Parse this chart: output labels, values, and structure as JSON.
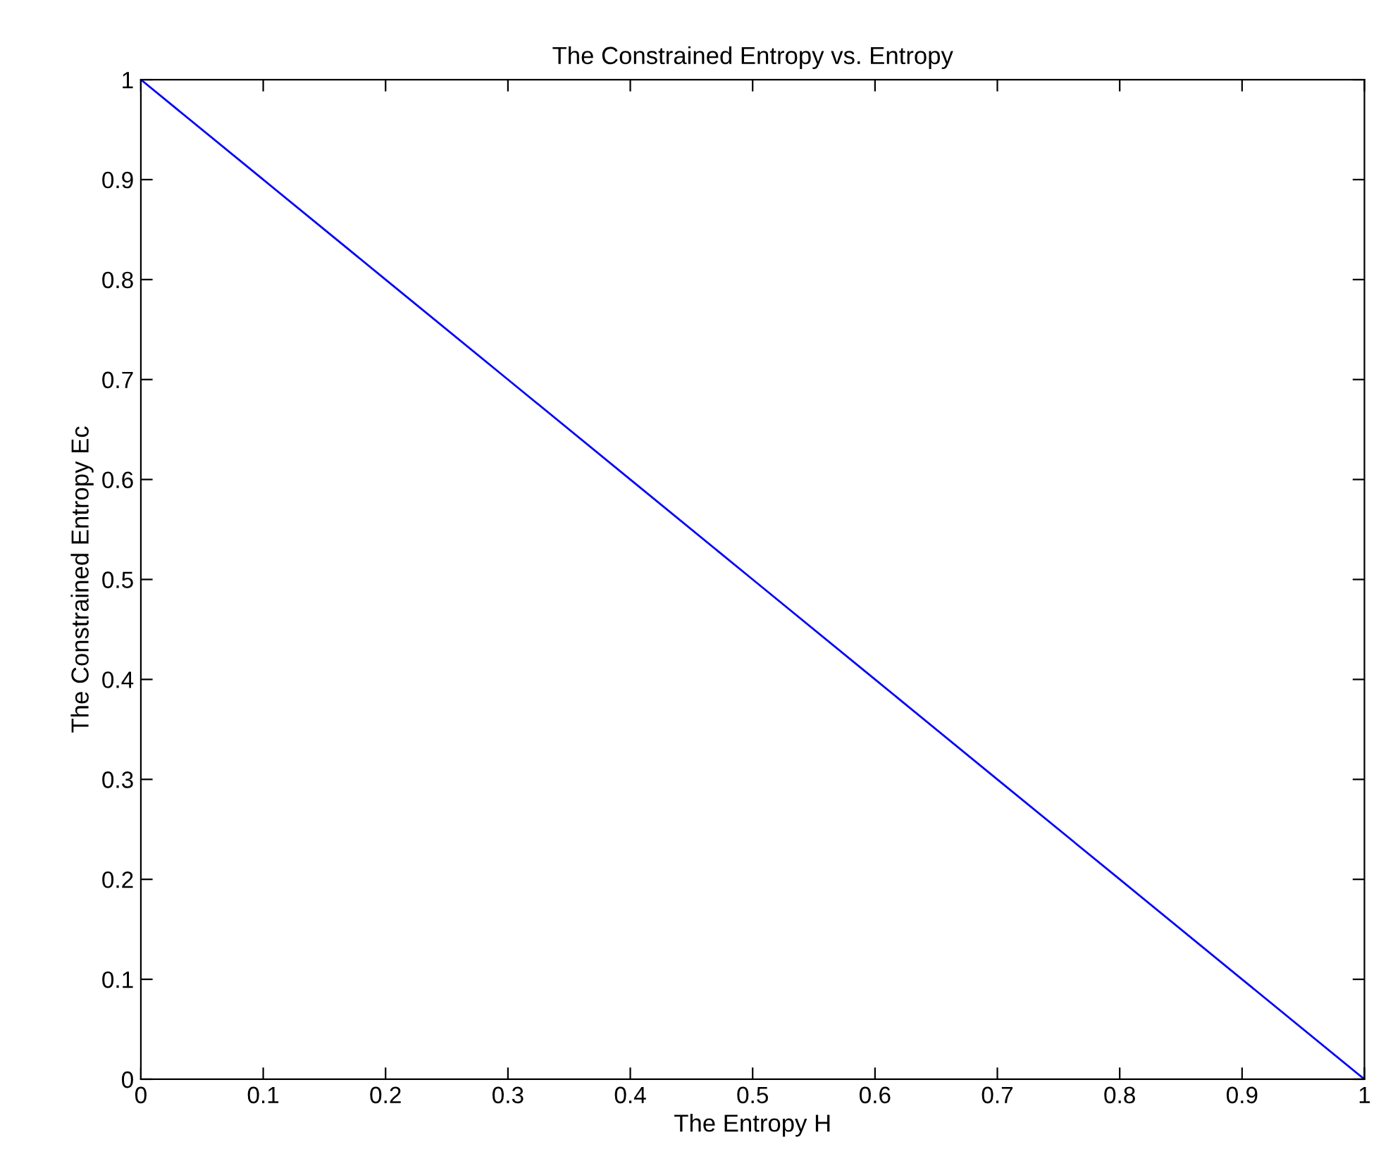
{
  "chart_data": {
    "type": "line",
    "title": "The Constrained Entropy vs. Entropy",
    "xlabel": "The Entropy H",
    "ylabel": "The Constrained Entropy Ec",
    "series": [
      {
        "color": "#0000ff",
        "x": [
          0,
          0.1,
          0.2,
          0.3,
          0.4,
          0.5,
          0.6,
          0.7,
          0.8,
          0.9,
          1
        ],
        "values": [
          1,
          0.9,
          0.8,
          0.7,
          0.6,
          0.5,
          0.4,
          0.3,
          0.2,
          0.1,
          0
        ]
      }
    ],
    "xlim": [
      0,
      1
    ],
    "ylim": [
      0,
      1
    ],
    "xticks": [
      0,
      0.1,
      0.2,
      0.3,
      0.4,
      0.5,
      0.6,
      0.7,
      0.8,
      0.9,
      1
    ],
    "yticks": [
      0,
      0.1,
      0.2,
      0.3,
      0.4,
      0.5,
      0.6,
      0.7,
      0.8,
      0.9,
      1
    ],
    "grid": false,
    "marker": "none",
    "line_style": "solid"
  }
}
